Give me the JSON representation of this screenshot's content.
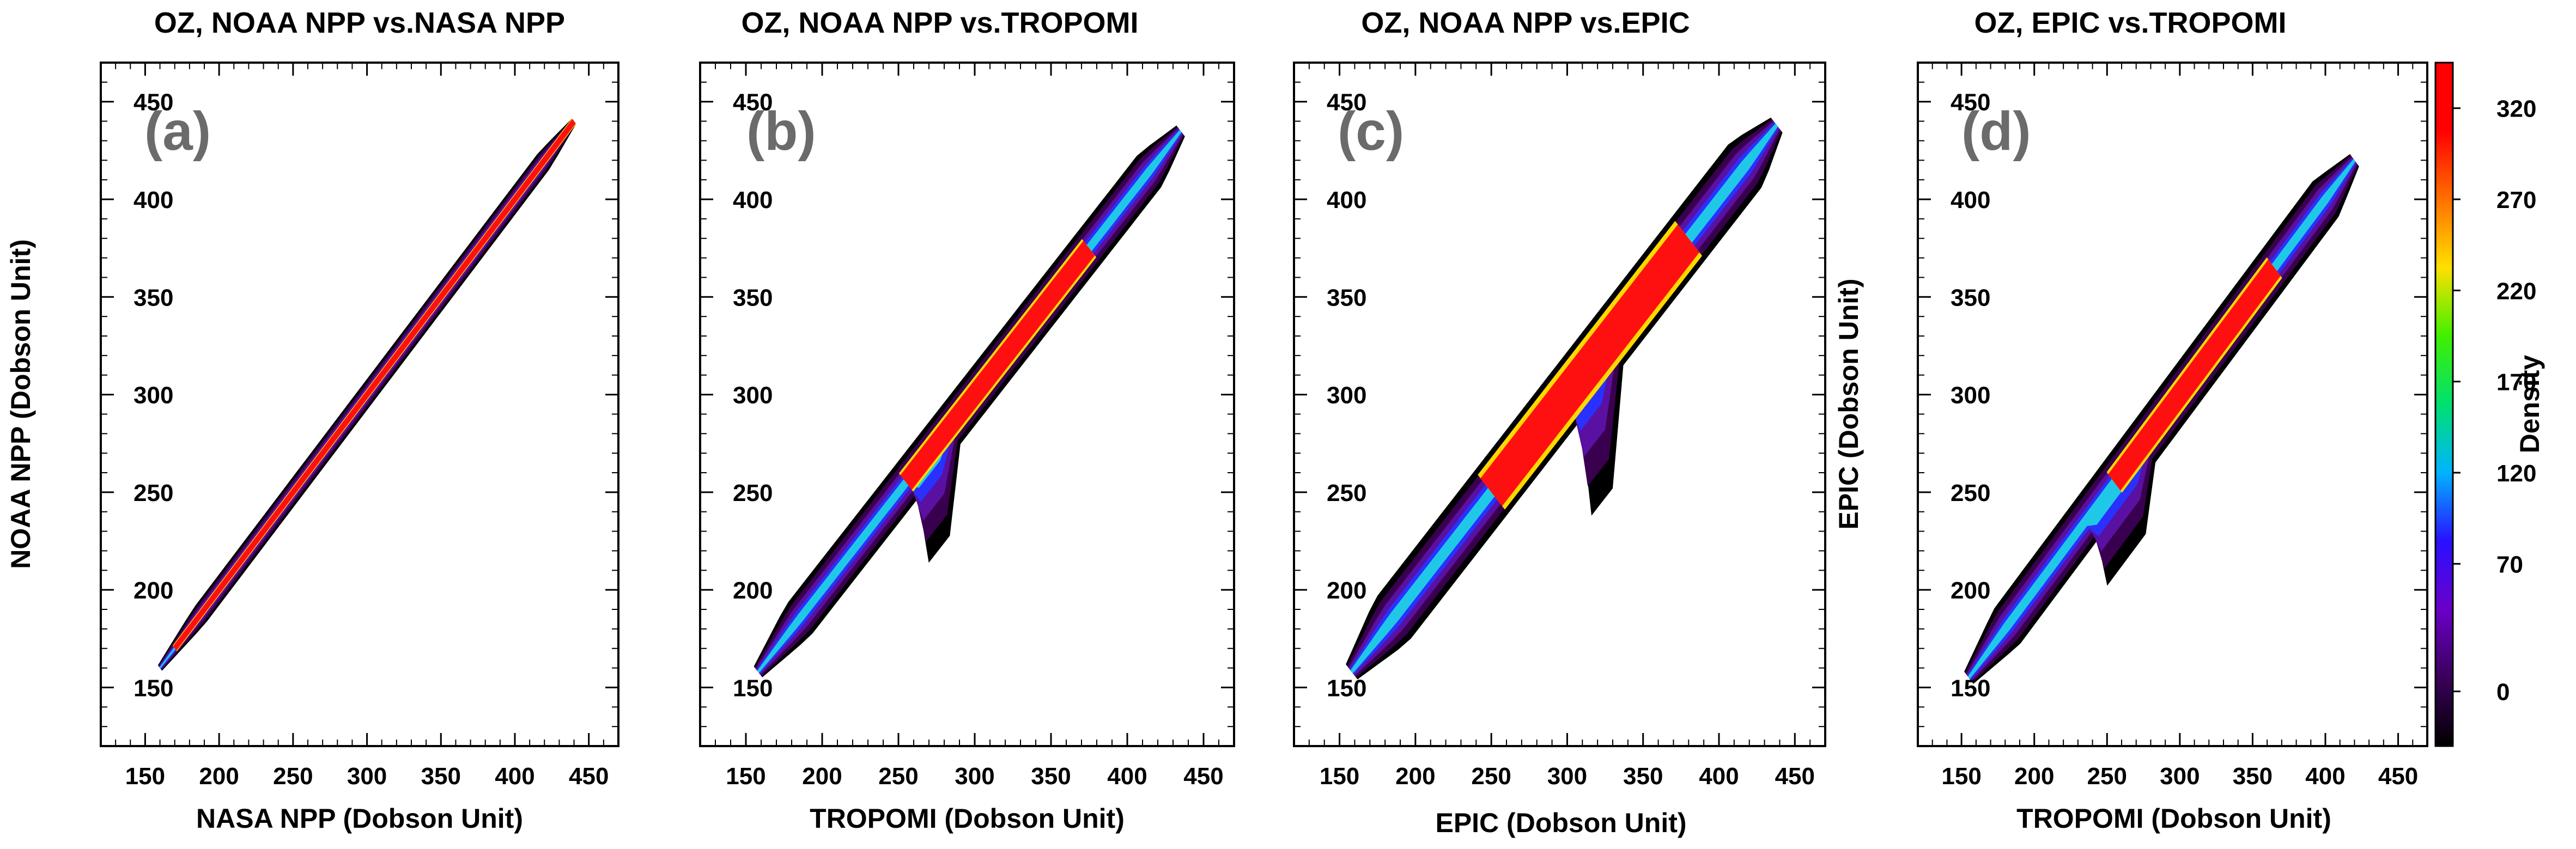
{
  "chart_data": [
    {
      "type": "heatmap",
      "title": "OZ, NOAA NPP vs.NASA NPP",
      "panel_label": "(a)",
      "xlabel": "NASA NPP (Dobson Unit)",
      "ylabel": "NOAA NPP (Dobson Unit)",
      "xlim": [
        120,
        470
      ],
      "ylim": [
        120,
        470
      ],
      "xticks": [
        150,
        200,
        250,
        300,
        350,
        400,
        450
      ],
      "yticks": [
        150,
        200,
        250,
        300,
        350,
        400,
        450
      ],
      "tick_labels": [
        "150",
        "200",
        "250",
        "300",
        "350",
        "400",
        "450"
      ],
      "data_range": [
        160,
        440
      ],
      "spread": 4,
      "core_width": 0.8,
      "core_segments": [
        [
          170,
          440
        ]
      ],
      "bump": null
    },
    {
      "type": "heatmap",
      "title": "OZ, NOAA NPP vs.TROPOMI",
      "panel_label": "(b)",
      "xlabel": "TROPOMI (Dobson Unit)",
      "ylabel": "",
      "xlim": [
        120,
        470
      ],
      "ylim": [
        120,
        470
      ],
      "xticks": [
        150,
        200,
        250,
        300,
        350,
        400,
        450
      ],
      "yticks": [
        150,
        200,
        250,
        300,
        350,
        400,
        450
      ],
      "tick_labels": [
        "150",
        "200",
        "250",
        "300",
        "350",
        "400",
        "450"
      ],
      "data_range": [
        158,
        435
      ],
      "spread": 8,
      "core_width": 1.3,
      "core_segments": [
        [
          255,
          375
        ]
      ],
      "bump": [
        255,
        280,
        -20
      ]
    },
    {
      "type": "heatmap",
      "title": "OZ, NOAA NPP vs.EPIC",
      "panel_label": "(c)",
      "xlabel": "EPIC (Dobson Unit)",
      "ylabel": "",
      "xlim": [
        120,
        470
      ],
      "ylim": [
        120,
        470
      ],
      "xticks": [
        150,
        200,
        250,
        300,
        350,
        400,
        450
      ],
      "yticks": [
        150,
        200,
        250,
        300,
        350,
        400,
        450
      ],
      "tick_labels": [
        "150",
        "200",
        "250",
        "300",
        "350",
        "400",
        "450"
      ],
      "data_range": [
        158,
        438
      ],
      "spread": 11,
      "core_width": 1.8,
      "core_segments": [
        [
          250,
          380
        ]
      ],
      "bump": [
        300,
        320,
        -28
      ]
    },
    {
      "type": "heatmap",
      "title": "OZ, EPIC vs.TROPOMI",
      "panel_label": "(d)",
      "xlabel": "TROPOMI (Dobson Unit)",
      "ylabel": "EPIC (Dobson Unit)",
      "xlim": [
        120,
        470
      ],
      "ylim": [
        120,
        470
      ],
      "xticks": [
        150,
        200,
        250,
        300,
        350,
        400,
        450
      ],
      "yticks": [
        150,
        200,
        250,
        300,
        350,
        400,
        450
      ],
      "tick_labels": [
        "150",
        "200",
        "250",
        "300",
        "350",
        "400",
        "450"
      ],
      "data_range": [
        155,
        420
      ],
      "spread": 9,
      "core_width": 1.3,
      "core_segments": [
        [
          255,
          365
        ]
      ],
      "bump": [
        240,
        270,
        -15
      ]
    }
  ],
  "colorbar": {
    "label": "Density",
    "ticks": [
      0,
      70,
      120,
      170,
      220,
      270,
      320
    ],
    "tick_labels": [
      "0",
      "70",
      "120",
      "170",
      "220",
      "270",
      "320"
    ],
    "range": [
      -30,
      345
    ],
    "colors": [
      "#000000",
      "#3a005a",
      "#6a00c8",
      "#2a10ff",
      "#00b4ff",
      "#00e070",
      "#40f000",
      "#ffe000",
      "#ff7000",
      "#ff0000",
      "#ff0000"
    ]
  }
}
